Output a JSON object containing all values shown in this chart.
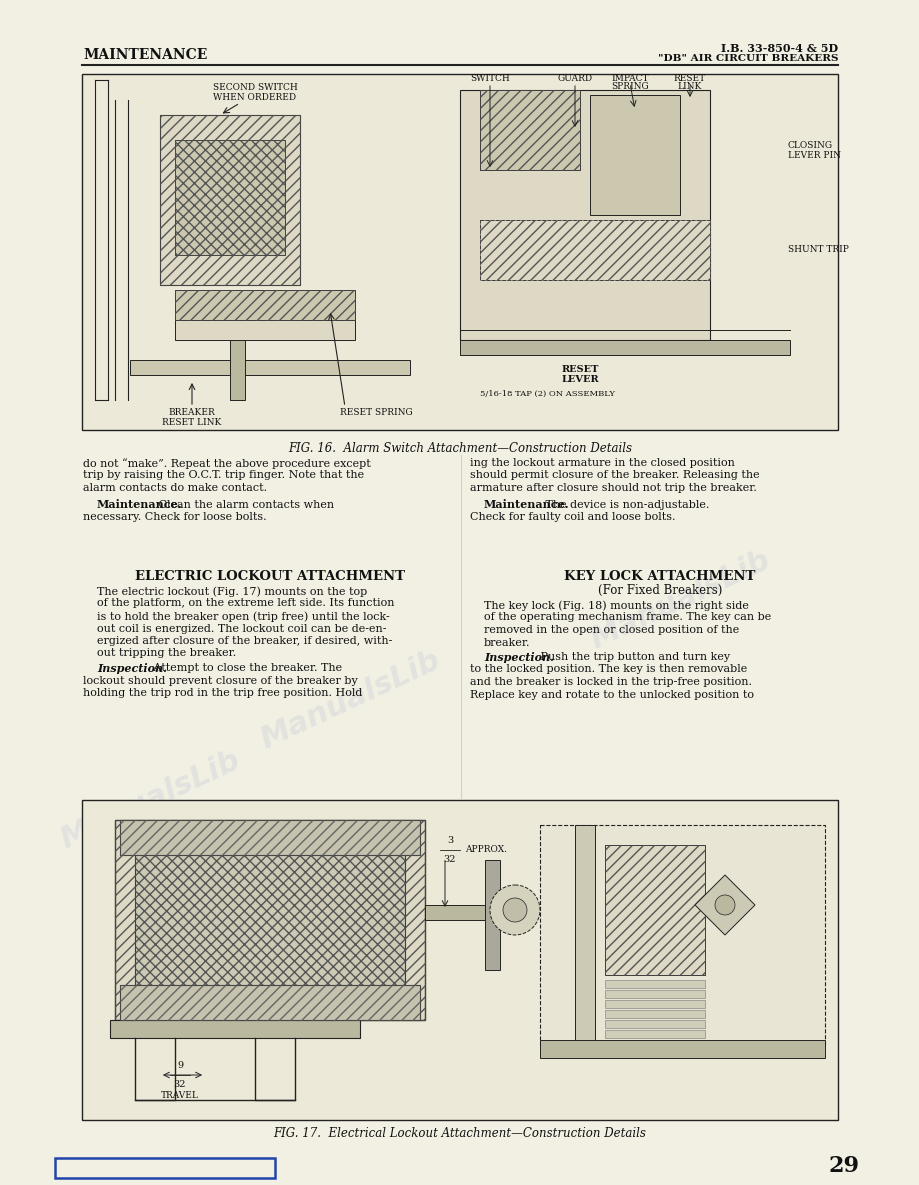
{
  "page_bg": "#f2f0e3",
  "header_left": "MAINTENANCE",
  "header_right_top": "I.B. 33-850-4 & 5D",
  "header_right_bot": "\"DB\" AIR CIRCUIT BREAKERS",
  "fig16_caption": "FIG. 16.  Alarm Switch Attachment—Construction Details",
  "fig17_caption": "FIG. 17.  Electrical Lockout Attachment—Construction Details",
  "section1_head": "ELECTRIC LOCKOUT ATTACHMENT",
  "section2_head": "KEY LOCK ATTACHMENT",
  "section2_sub": "(For Fixed Breakers)",
  "col1_para1_line1": "do not “make”. Repeat the above procedure except",
  "col1_para1_line2": "trip by raising the O.C.T. trip finger. Note that the",
  "col1_para1_line3": "alarm contacts do make contact.",
  "col1_maint_bold": "Maintenance.",
  "col1_maint_rest_line1": " Clean the alarm contacts when",
  "col1_maint_rest_line2": "necessary. Check for loose bolts.",
  "col1_body_line1": "The electric lockout (Fig. 17) mounts on the top",
  "col1_body_line2": "of the platform, on the extreme left side. Its function",
  "col1_body_line3": "is to hold the breaker open (trip free) until the lock-",
  "col1_body_line4": "out coil is energized. The lockout coil can be de-en-",
  "col1_body_line5": "ergized after closure of the breaker, if desired, with-",
  "col1_body_line6": "out tripping the breaker.",
  "col1_insp_bold": "Inspection.",
  "col1_insp_rest_line1": " Attempt to close the breaker. The",
  "col1_insp_rest_line2": "lockout should prevent closure of the breaker by",
  "col1_insp_rest_line3": "holding the trip rod in the trip free position. Hold",
  "col2_para1_line1": "ing the lockout armature in the closed position",
  "col2_para1_line2": "should permit closure of the breaker. Releasing the",
  "col2_para1_line3": "armature after closure should not trip the breaker.",
  "col2_maint_bold": "Maintenance.",
  "col2_maint_rest_line1": " The device is non-adjustable.",
  "col2_maint_rest_line2": "Check for faulty coil and loose bolts.",
  "col2_body_line1": "The key lock (Fig. 18) mounts on the right side",
  "col2_body_line2": "of the operating mechanism frame. The key can be",
  "col2_body_line3": "removed in the open or closed position of the",
  "col2_body_line4": "breaker.",
  "col2_insp_bold": "Inspection.",
  "col2_insp_rest_line1": " Push the trip button and turn key",
  "col2_insp_rest_line2": "to the locked position. The key is then removable",
  "col2_insp_rest_line3": "and the breaker is locked in the trip-free position.",
  "col2_insp_rest_line4": "Replace key and rotate to the unlocked position to",
  "page_num": "29",
  "text_color": "#111111",
  "draw_color": "#222222",
  "header_line_color": "#111111",
  "watermark_color": "#99aacc"
}
